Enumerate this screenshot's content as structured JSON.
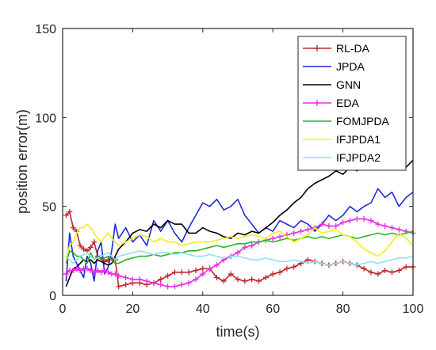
{
  "chart_data": {
    "type": "line",
    "xlabel": "time(s)",
    "ylabel": "position error(m)",
    "xlim": [
      0,
      100
    ],
    "ylim": [
      0,
      150
    ],
    "xticks": [
      "0",
      "20",
      "40",
      "60",
      "80",
      "100"
    ],
    "yticks": [
      "0",
      "50",
      "100",
      "150"
    ],
    "legend_position": "top-right",
    "grid": false,
    "series": [
      {
        "name": "RL-DA",
        "color": "#c0282e",
        "marker": "plus",
        "x": [
          1,
          2,
          3,
          4,
          5,
          6,
          7,
          8,
          9,
          10,
          11,
          12,
          13,
          14,
          15,
          16,
          18,
          20,
          22,
          24,
          26,
          28,
          30,
          32,
          34,
          36,
          38,
          40,
          42,
          44,
          46,
          48,
          50,
          52,
          54,
          56,
          58,
          60,
          62,
          64,
          66,
          68,
          70,
          72,
          74,
          76,
          78,
          80,
          82,
          84,
          86,
          88,
          90,
          92,
          94,
          96,
          98,
          100
        ],
        "y": [
          45,
          47,
          38,
          36,
          28,
          26,
          25,
          27,
          30,
          22,
          21,
          19,
          20,
          21,
          20,
          5,
          6,
          7,
          7,
          6,
          7,
          9,
          11,
          13,
          13,
          13,
          14,
          15,
          15,
          10,
          8,
          12,
          9,
          8,
          9,
          8,
          10,
          12,
          13,
          15,
          16,
          18,
          20,
          19,
          18,
          17,
          18,
          19,
          18,
          17,
          15,
          13,
          12,
          14,
          13,
          14,
          16,
          16
        ]
      },
      {
        "name": "JPDA",
        "color": "#1f2bd6",
        "marker": "none",
        "x": [
          1,
          2,
          3,
          4,
          5,
          6,
          7,
          8,
          9,
          10,
          11,
          12,
          13,
          14,
          15,
          16,
          18,
          20,
          22,
          24,
          26,
          28,
          30,
          32,
          34,
          36,
          38,
          40,
          42,
          44,
          46,
          48,
          50,
          52,
          54,
          56,
          58,
          60,
          62,
          64,
          66,
          68,
          70,
          72,
          74,
          76,
          78,
          80,
          82,
          84,
          86,
          88,
          90,
          92,
          94,
          96,
          98,
          100
        ],
        "y": [
          8,
          35,
          22,
          18,
          14,
          10,
          22,
          18,
          8,
          25,
          30,
          12,
          16,
          25,
          40,
          32,
          38,
          30,
          34,
          28,
          42,
          36,
          42,
          35,
          30,
          38,
          45,
          52,
          50,
          54,
          48,
          50,
          54,
          45,
          40,
          35,
          38,
          36,
          42,
          40,
          38,
          42,
          40,
          36,
          40,
          45,
          42,
          45,
          50,
          47,
          50,
          52,
          60,
          55,
          58,
          50,
          55,
          58
        ]
      },
      {
        "name": "GNN",
        "color": "#000000",
        "marker": "none",
        "x": [
          1,
          2,
          3,
          4,
          5,
          6,
          7,
          8,
          9,
          10,
          11,
          12,
          13,
          14,
          15,
          16,
          18,
          20,
          22,
          24,
          26,
          28,
          30,
          32,
          34,
          36,
          38,
          40,
          42,
          44,
          46,
          48,
          50,
          52,
          54,
          56,
          58,
          60,
          62,
          64,
          66,
          68,
          70,
          72,
          74,
          76,
          78,
          80,
          82,
          84,
          86,
          88,
          90,
          92,
          94,
          96,
          98,
          100
        ],
        "y": [
          5,
          10,
          15,
          16,
          18,
          20,
          19,
          20,
          18,
          20,
          19,
          18,
          17,
          18,
          22,
          26,
          30,
          35,
          37,
          36,
          40,
          38,
          42,
          40,
          40,
          35,
          35,
          38,
          36,
          35,
          33,
          32,
          35,
          34,
          36,
          35,
          38,
          41,
          45,
          48,
          52,
          55,
          60,
          63,
          65,
          67,
          70,
          68,
          72,
          70,
          73,
          71,
          73,
          72,
          71,
          74,
          72,
          76
        ]
      },
      {
        "name": "EDA",
        "color": "#e32fe3",
        "marker": "plus",
        "x": [
          1,
          2,
          3,
          4,
          5,
          6,
          7,
          8,
          9,
          10,
          11,
          12,
          13,
          14,
          15,
          16,
          18,
          20,
          22,
          24,
          26,
          28,
          30,
          32,
          34,
          36,
          38,
          40,
          42,
          44,
          46,
          48,
          50,
          52,
          54,
          56,
          58,
          60,
          62,
          64,
          66,
          68,
          70,
          72,
          74,
          76,
          78,
          80,
          82,
          84,
          86,
          88,
          90,
          92,
          94,
          96,
          98,
          100
        ],
        "y": [
          12,
          14,
          14,
          15,
          14,
          15,
          15,
          14,
          13,
          14,
          13,
          14,
          13,
          12,
          12,
          11,
          10,
          9,
          9,
          8,
          7,
          6,
          5,
          5,
          6,
          7,
          9,
          12,
          15,
          17,
          20,
          22,
          24,
          27,
          28,
          30,
          31,
          32,
          33,
          34,
          35,
          36,
          37,
          38,
          40,
          39,
          39,
          41,
          42,
          43,
          43,
          42,
          40,
          39,
          38,
          37,
          36,
          35
        ]
      },
      {
        "name": "FOMJPDA",
        "color": "#23b823",
        "marker": "none",
        "x": [
          1,
          2,
          3,
          4,
          5,
          6,
          7,
          8,
          9,
          10,
          11,
          12,
          13,
          14,
          15,
          16,
          18,
          20,
          22,
          24,
          26,
          28,
          30,
          32,
          34,
          36,
          38,
          40,
          42,
          44,
          46,
          48,
          50,
          52,
          54,
          56,
          58,
          60,
          62,
          64,
          66,
          68,
          70,
          72,
          74,
          76,
          78,
          80,
          82,
          84,
          86,
          88,
          90,
          92,
          94,
          96,
          98,
          100
        ],
        "y": [
          18,
          25,
          24,
          22,
          22,
          20,
          18,
          24,
          20,
          22,
          20,
          21,
          22,
          20,
          18,
          18,
          20,
          21,
          22,
          22,
          23,
          22,
          23,
          24,
          24,
          25,
          25,
          26,
          27,
          28,
          27,
          28,
          29,
          29,
          30,
          30,
          31,
          30,
          31,
          32,
          31,
          32,
          33,
          32,
          33,
          32,
          33,
          34,
          33,
          32,
          33,
          34,
          35,
          34,
          35,
          34,
          35,
          36
        ]
      },
      {
        "name": "IFJPDA1",
        "color": "#f0f015",
        "marker": "none",
        "x": [
          1,
          2,
          3,
          4,
          5,
          6,
          7,
          8,
          9,
          10,
          11,
          12,
          13,
          14,
          15,
          16,
          18,
          20,
          22,
          24,
          26,
          28,
          30,
          32,
          34,
          36,
          38,
          40,
          42,
          44,
          46,
          48,
          50,
          52,
          54,
          56,
          58,
          60,
          62,
          64,
          66,
          68,
          70,
          72,
          74,
          76,
          78,
          80,
          82,
          84,
          86,
          88,
          90,
          92,
          94,
          96,
          98,
          100
        ],
        "y": [
          20,
          28,
          30,
          35,
          38,
          38,
          40,
          38,
          35,
          32,
          30,
          33,
          35,
          32,
          30,
          28,
          30,
          32,
          34,
          33,
          30,
          32,
          30,
          30,
          28,
          29,
          30,
          30,
          30,
          31,
          32,
          33,
          32,
          33,
          34,
          33,
          32,
          35,
          36,
          33,
          30,
          32,
          34,
          38,
          35,
          36,
          37,
          34,
          33,
          30,
          26,
          24,
          22,
          25,
          30,
          35,
          32,
          28
        ]
      },
      {
        "name": "IFJPDA2",
        "color": "#8fe0f2",
        "marker": "none",
        "x": [
          1,
          2,
          3,
          4,
          5,
          6,
          7,
          8,
          9,
          10,
          11,
          12,
          13,
          14,
          15,
          16,
          18,
          20,
          22,
          24,
          26,
          28,
          30,
          32,
          34,
          36,
          38,
          40,
          42,
          44,
          46,
          48,
          50,
          52,
          54,
          56,
          58,
          60,
          62,
          64,
          66,
          68,
          70,
          72,
          74,
          76,
          78,
          80,
          82,
          84,
          86,
          88,
          90,
          92,
          94,
          96,
          98,
          100
        ],
        "y": [
          22,
          20,
          18,
          20,
          22,
          23,
          24,
          22,
          20,
          21,
          22,
          23,
          24,
          22,
          20,
          22,
          23,
          24,
          25,
          24,
          23,
          24,
          24,
          23,
          24,
          23,
          22,
          22,
          23,
          22,
          21,
          22,
          22,
          21,
          20,
          20,
          21,
          20,
          19,
          19,
          20,
          19,
          18,
          19,
          18,
          17,
          18,
          19,
          18,
          17,
          18,
          19,
          18,
          19,
          20,
          21,
          21,
          22
        ]
      }
    ]
  }
}
